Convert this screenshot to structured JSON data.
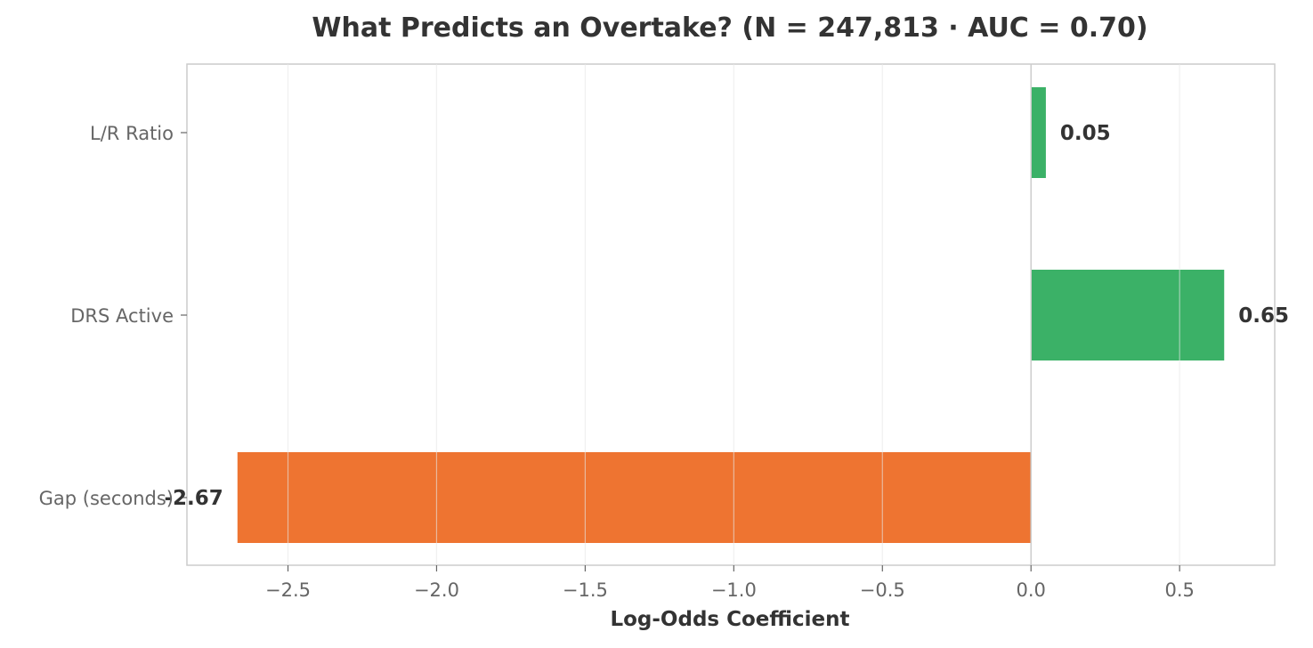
{
  "chart_data": {
    "type": "bar",
    "orientation": "horizontal",
    "title": "What Predicts an Overtake? (N = 247,813 · AUC = 0.70)",
    "xlabel": "Log-Odds Coefficient",
    "ylabel": "",
    "categories": [
      "L/R Ratio",
      "DRS Active",
      "Gap (seconds)"
    ],
    "values": [
      0.05,
      0.65,
      -2.67
    ],
    "data_labels": [
      "0.05",
      "0.65",
      "-2.67"
    ],
    "colors": [
      "#3bb167",
      "#3bb167",
      "#ee7431"
    ],
    "positive_color": "#3bb167",
    "negative_color": "#ee7431",
    "xlim": [
      -2.84,
      0.82
    ],
    "xticks": [
      -2.5,
      -2.0,
      -1.5,
      -1.0,
      -0.5,
      0.0,
      0.5
    ],
    "xtick_labels": [
      "−2.5",
      "−2.0",
      "−1.5",
      "−1.0",
      "−0.5",
      "0.0",
      "0.5"
    ],
    "grid": "x",
    "legend": "none"
  }
}
